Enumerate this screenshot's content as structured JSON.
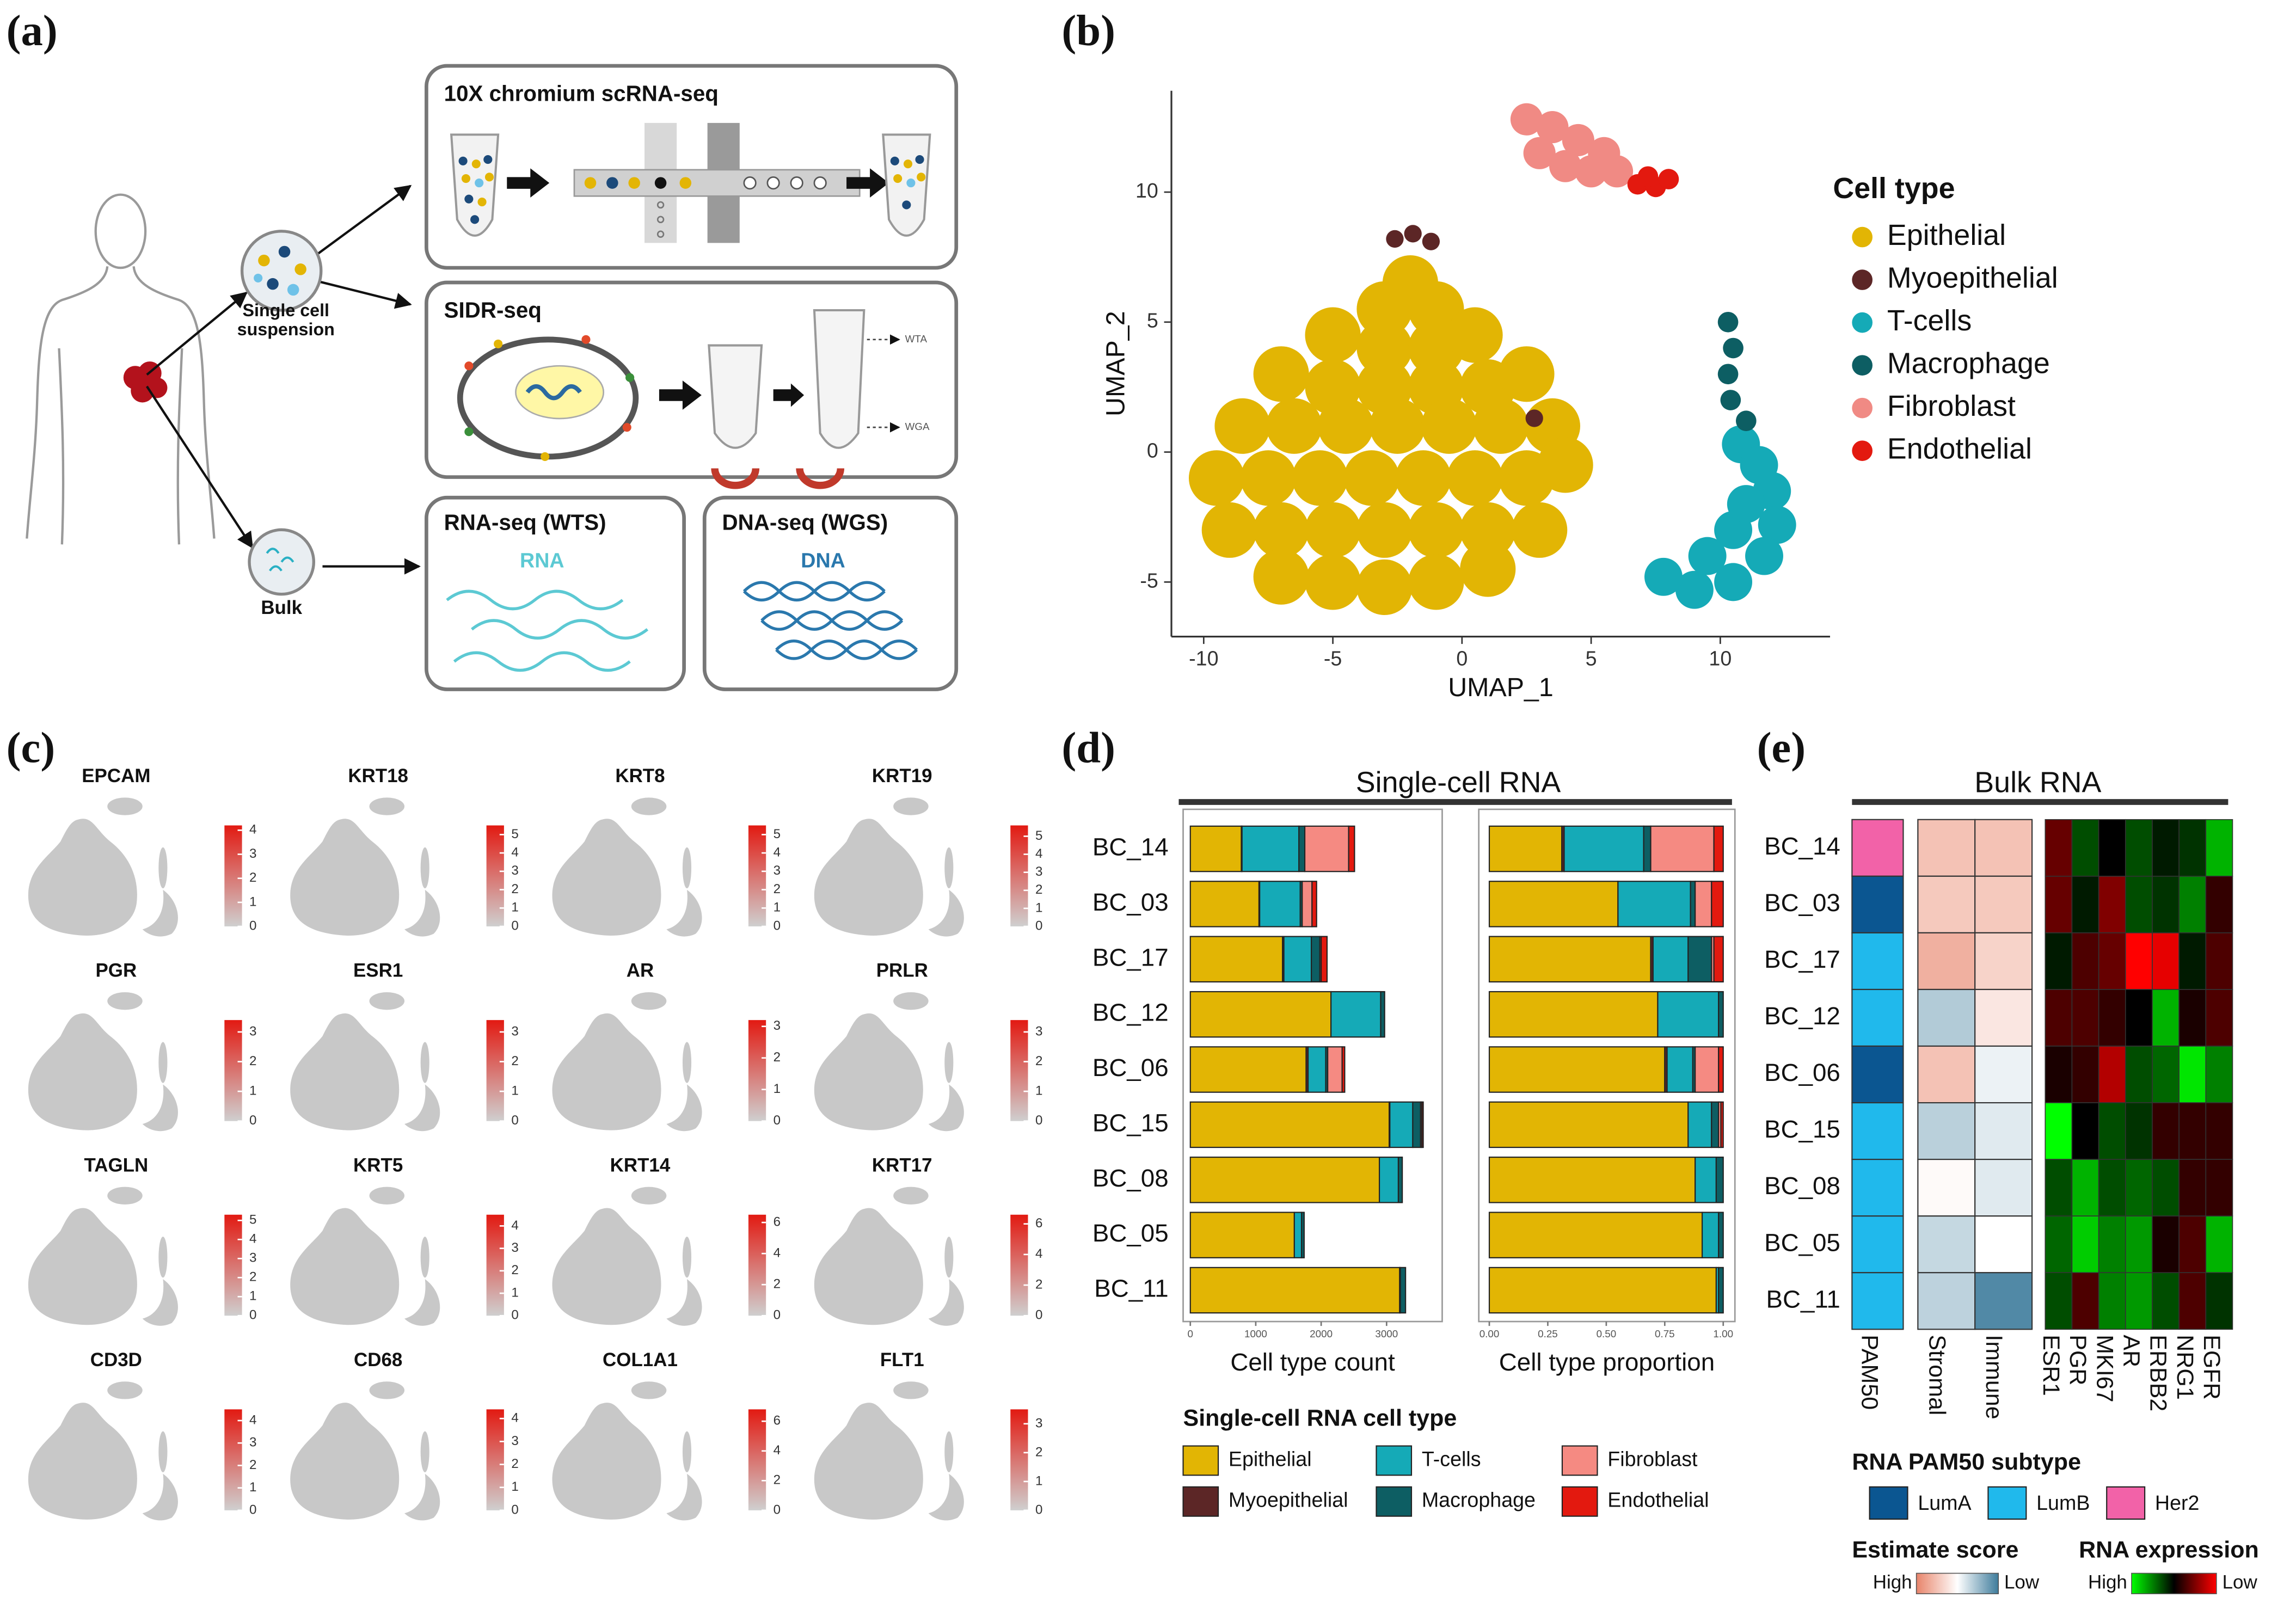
{
  "panel_labels": [
    "(a)",
    "(b)",
    "(c)",
    "(d)",
    "(e)"
  ],
  "diagram": {
    "boxes": [
      "10X chromium scRNA-seq",
      "SIDR-seq",
      "RNA-seq (WTS)",
      "DNA-seq (WGS)"
    ],
    "single_cell": [
      "Single cell",
      "suspension"
    ],
    "bulk": "Bulk",
    "rna": "RNA",
    "dna": "DNA",
    "wta": "WTA",
    "wga": "WGA"
  },
  "feature_plots": [
    {
      "gene": "EPCAM",
      "lim": [
        0,
        4.2
      ],
      "ticks": [
        0,
        1,
        2,
        3,
        4
      ]
    },
    {
      "gene": "KRT18",
      "lim": [
        0,
        5.5
      ],
      "ticks": [
        0,
        1,
        2,
        3,
        4,
        5
      ]
    },
    {
      "gene": "KRT8",
      "lim": [
        0,
        5.5
      ],
      "ticks": [
        0,
        1,
        2,
        3,
        4,
        5
      ]
    },
    {
      "gene": "KRT19",
      "lim": [
        0,
        5.6
      ],
      "ticks": [
        0,
        1,
        2,
        3,
        4,
        5
      ]
    },
    {
      "gene": "PGR",
      "lim": [
        0,
        3.4
      ],
      "ticks": [
        0,
        1,
        2,
        3
      ]
    },
    {
      "gene": "ESR1",
      "lim": [
        0,
        3.4
      ],
      "ticks": [
        0,
        1,
        2,
        3
      ]
    },
    {
      "gene": "AR",
      "lim": [
        0,
        3.2
      ],
      "ticks": [
        0,
        1,
        2,
        3
      ]
    },
    {
      "gene": "PRLR",
      "lim": [
        0,
        3.4
      ],
      "ticks": [
        0,
        1,
        2,
        3
      ]
    },
    {
      "gene": "TAGLN",
      "lim": [
        0,
        5.3
      ],
      "ticks": [
        0,
        1,
        2,
        3,
        4,
        5
      ]
    },
    {
      "gene": "KRT5",
      "lim": [
        0,
        4.5
      ],
      "ticks": [
        0,
        1,
        2,
        3,
        4
      ]
    },
    {
      "gene": "KRT14",
      "lim": [
        0,
        6.5
      ],
      "ticks": [
        0,
        2,
        4,
        6
      ]
    },
    {
      "gene": "KRT17",
      "lim": [
        0,
        6.6
      ],
      "ticks": [
        0,
        2,
        4,
        6
      ]
    },
    {
      "gene": "CD3D",
      "lim": [
        0,
        4.5
      ],
      "ticks": [
        0,
        1,
        2,
        3,
        4
      ]
    },
    {
      "gene": "CD68",
      "lim": [
        0,
        4.4
      ],
      "ticks": [
        0,
        1,
        2,
        3,
        4
      ]
    },
    {
      "gene": "COL1A1",
      "lim": [
        0,
        6.8
      ],
      "ticks": [
        0,
        2,
        4,
        6
      ]
    },
    {
      "gene": "FLT1",
      "lim": [
        0,
        3.5
      ],
      "ticks": [
        0,
        1,
        2,
        3
      ]
    }
  ],
  "chart_data": [
    {
      "type": "scatter",
      "xlabel": "UMAP_1",
      "ylabel": "UMAP_2",
      "legend_title": "Cell type",
      "xlim": [
        -11.25,
        14.25
      ],
      "ylim": [
        -7.1,
        13.9
      ],
      "xticks": [
        -10,
        -5,
        0,
        5,
        10
      ],
      "yticks": [
        -5,
        0,
        5,
        10
      ],
      "series": [
        {
          "name": "Epithelial",
          "color": "#e2b504",
          "x": [
            -2,
            -3,
            -1,
            -5,
            -3,
            -1,
            0.5,
            -7,
            -5,
            -3,
            -1,
            1,
            2.5,
            -8.5,
            -6.5,
            -4.5,
            -2.5,
            -0.5,
            1.5,
            3.5,
            -9.5,
            -7.5,
            -5.5,
            -3.5,
            -1.5,
            0.5,
            2.5,
            4,
            -9,
            -7,
            -5,
            -3,
            -1,
            1,
            3,
            -7,
            -5,
            -3,
            -1,
            1
          ],
          "y": [
            6.5,
            5.5,
            5.5,
            4.5,
            4,
            4,
            4.5,
            3,
            2.5,
            2.5,
            2.5,
            2.5,
            3,
            1,
            1,
            1,
            1,
            1,
            1,
            1,
            -1,
            -1,
            -1,
            -1,
            -1,
            -1,
            -1,
            -0.5,
            -3,
            -3,
            -3,
            -3,
            -3,
            -3,
            -3,
            -4.8,
            -5,
            -5.2,
            -5,
            -4.5
          ]
        },
        {
          "name": "Myoepithelial",
          "color": "#5c2626",
          "x": [
            -2.6,
            -1.9,
            -1.2,
            2.8
          ],
          "y": [
            8.2,
            8.4,
            8.1,
            1.3
          ]
        },
        {
          "name": "T-cells",
          "color": "#15aab7",
          "x": [
            10.8,
            11.5,
            12,
            12.2,
            11.7,
            10.5,
            9,
            7.8,
            10.5,
            11,
            9.5
          ],
          "y": [
            0.3,
            -0.5,
            -1.5,
            -2.8,
            -4,
            -5,
            -5.3,
            -4.8,
            -3,
            -2,
            -4
          ]
        },
        {
          "name": "Macrophage",
          "color": "#0d5e63",
          "x": [
            10.3,
            10.5,
            10.3,
            10.4,
            11
          ],
          "y": [
            5,
            4,
            3,
            2,
            1.2
          ]
        },
        {
          "name": "Fibroblast",
          "color": "#f08a84",
          "x": [
            2.5,
            3.5,
            4.5,
            5.5,
            3,
            4,
            5,
            6
          ],
          "y": [
            12.8,
            12.5,
            12,
            11.5,
            11.5,
            11,
            10.8,
            10.8
          ]
        },
        {
          "name": "Endothelial",
          "color": "#e3190f",
          "x": [
            6.8,
            7.5,
            8,
            7.2
          ],
          "y": [
            10.3,
            10.2,
            10.5,
            10.6
          ]
        }
      ]
    },
    {
      "type": "bar",
      "title": "Single-cell RNA",
      "legend_title": "Single-cell RNA cell type",
      "categories": [
        "BC_14",
        "BC_03",
        "BC_17",
        "BC_12",
        "BC_06",
        "BC_15",
        "BC_08",
        "BC_05",
        "BC_11"
      ],
      "series": [
        {
          "name": "Epithelial",
          "color": "#e2b504"
        },
        {
          "name": "Myoepithelial",
          "color": "#5c2626"
        },
        {
          "name": "T-cells",
          "color": "#15aab7"
        },
        {
          "name": "Macrophage",
          "color": "#0d5e63"
        },
        {
          "name": "Fibroblast",
          "color": "#f58a82"
        },
        {
          "name": "Endothelial",
          "color": "#e3190f"
        }
      ],
      "panels": [
        {
          "xlabel": "Cell type count",
          "xlim": [
            -110,
            3850
          ],
          "xticks": [
            0,
            1000,
            2000,
            3000
          ],
          "values": [
            [
              780,
              1050,
              1410,
              2150,
              1770,
              3040,
              2890,
              1590,
              3200
            ],
            [
              10,
              10,
              20,
              0,
              30,
              10,
              0,
              0,
              0
            ],
            [
              870,
              620,
              420,
              760,
              270,
              350,
              290,
              110,
              10
            ],
            [
              90,
              30,
              130,
              60,
              30,
              120,
              60,
              40,
              80
            ],
            [
              670,
              150,
              20,
              0,
              220,
              20,
              0,
              0,
              0
            ],
            [
              90,
              70,
              90,
              0,
              40,
              20,
              0,
              0,
              0
            ]
          ]
        },
        {
          "xlabel": "Cell type proportion",
          "xlim": [
            -0.045,
            1.05
          ],
          "xticks": [
            {
              "value": 0,
              "label": "0.00"
            },
            {
              "value": 0.25,
              "label": "0.25"
            },
            {
              "value": 0.5,
              "label": "0.50"
            },
            {
              "value": 0.75,
              "label": "0.75"
            },
            {
              "value": 1,
              "label": "1.00"
            }
          ],
          "values": [
            [
              0.31,
              0.55,
              0.69,
              0.72,
              0.75,
              0.85,
              0.88,
              0.91,
              0.97
            ],
            [
              0.01,
              0,
              0.01,
              0,
              0.01,
              0,
              0,
              0,
              0
            ],
            [
              0.34,
              0.31,
              0.15,
              0.26,
              0.11,
              0.1,
              0.09,
              0.07,
              0.01
            ],
            [
              0.03,
              0.02,
              0.1,
              0.02,
              0.01,
              0.03,
              0.03,
              0.02,
              0.02
            ],
            [
              0.27,
              0.07,
              0.01,
              0,
              0.1,
              0.01,
              0,
              0,
              0
            ],
            [
              0.04,
              0.05,
              0.04,
              0,
              0.02,
              0.01,
              0,
              0,
              0
            ]
          ]
        }
      ]
    },
    {
      "type": "heatmap",
      "title": "Bulk RNA",
      "categories": [
        "BC_14",
        "BC_03",
        "BC_17",
        "BC_12",
        "BC_06",
        "BC_15",
        "BC_08",
        "BC_05",
        "BC_11"
      ],
      "pam50": {
        "label": "PAM50",
        "legend_title": "RNA PAM50 subtype",
        "classes": [
          {
            "name": "LumA",
            "color": "#0b5691"
          },
          {
            "name": "LumB",
            "color": "#20b9ec"
          },
          {
            "name": "Her2",
            "color": "#f262a8"
          }
        ],
        "values": [
          "Her2",
          "LumA",
          "LumB",
          "LumB",
          "LumA",
          "LumB",
          "LumB",
          "LumB",
          "LumB"
        ]
      },
      "estimate": {
        "legend_title": "Estimate score",
        "high_label": "High",
        "low_label": "Low",
        "high_color": "#e8846a",
        "mid_color": "#ffffff",
        "low_color": "#3e7c9c",
        "columns": [
          "Stromal",
          "Immune"
        ],
        "values": [
          [
            0.75,
            0.72,
            0.82,
            0.3,
            0.75,
            0.32,
            0.52,
            0.35,
            0.33
          ],
          [
            0.75,
            0.72,
            0.68,
            0.6,
            0.45,
            0.42,
            0.42,
            0.5,
            0.05
          ]
        ]
      },
      "expression": {
        "legend_title": "RNA expression",
        "high_label": "High",
        "low_label": "Low",
        "high_color": "#00ff00",
        "mid_color": "#000000",
        "low_color": "#ff0000",
        "columns": [
          "ESR1",
          "PGR",
          "MKI67",
          "AR",
          "ERBB2",
          "NRG1",
          "EGFR"
        ],
        "values": [
          [
            -0.4,
            -0.4,
            0.1,
            -0.3,
            -0.1,
            1,
            0.3,
            0.4,
            0.3
          ],
          [
            0.3,
            0.1,
            -0.3,
            -0.3,
            -0.2,
            0,
            0.7,
            0.8,
            -0.3
          ],
          [
            0,
            -0.5,
            -0.4,
            -0.2,
            -0.7,
            0.3,
            0.3,
            0.5,
            0.5
          ],
          [
            0.3,
            0.3,
            -1,
            0,
            0.3,
            0.2,
            0.4,
            0.6,
            0.6
          ],
          [
            0.1,
            0.2,
            -0.9,
            0.7,
            0.4,
            -0.2,
            0.3,
            -0.1,
            0.3
          ],
          [
            0.2,
            0.5,
            0.1,
            -0.1,
            0.9,
            -0.2,
            -0.2,
            -0.3,
            -0.3
          ],
          [
            0.7,
            -0.2,
            -0.3,
            -0.3,
            0.5,
            -0.2,
            -0.2,
            0.7,
            0.2
          ]
        ]
      }
    }
  ]
}
